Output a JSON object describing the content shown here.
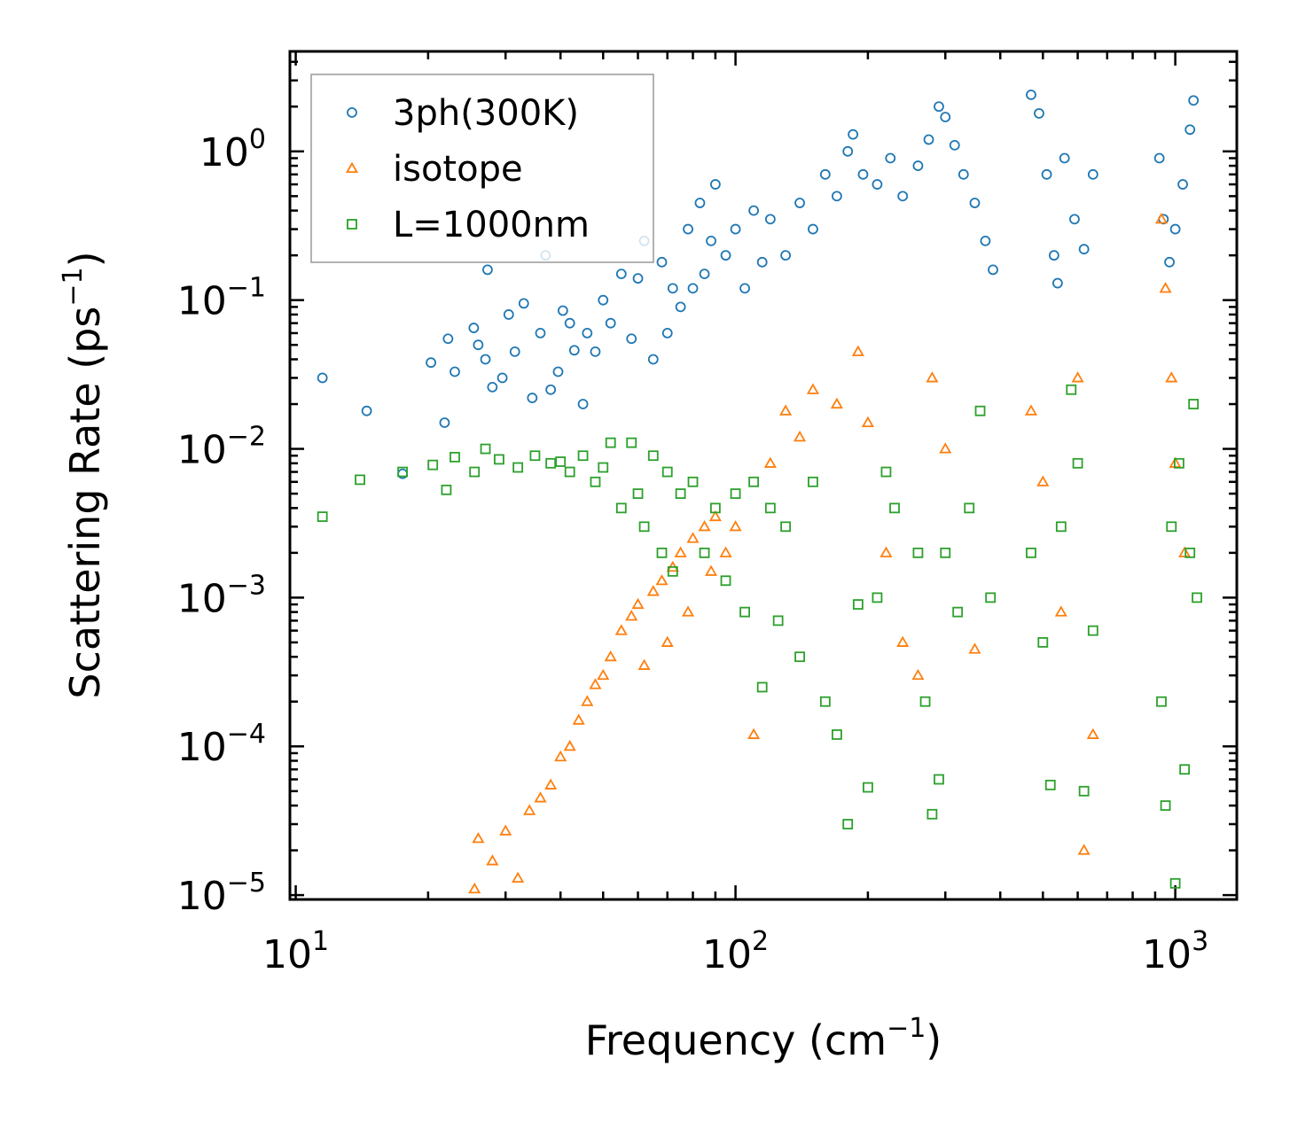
{
  "chart_data": {
    "type": "scatter",
    "scale": {
      "x": "log",
      "y": "log"
    },
    "xlabel": "Frequency (cm",
    "xlabel_sup": "−1",
    "xlabel_end": ")",
    "ylabel": "Scattering Rate (ps",
    "ylabel_sup": "−1",
    "ylabel_end": ")",
    "xlim": [
      9.7,
      1380
    ],
    "ylim": [
      9.35e-06,
      4.7
    ],
    "legend_position": "top-left",
    "x_ticks": [
      {
        "value": 10,
        "base": "10",
        "exp": "1"
      },
      {
        "value": 100,
        "base": "10",
        "exp": "2"
      },
      {
        "value": 1000,
        "base": "10",
        "exp": "3"
      }
    ],
    "y_ticks": [
      {
        "value": 1,
        "base": "10",
        "exp": "0"
      },
      {
        "value": 0.1,
        "base": "10",
        "exp": "−1"
      },
      {
        "value": 0.01,
        "base": "10",
        "exp": "−2"
      },
      {
        "value": 0.001,
        "base": "10",
        "exp": "−3"
      },
      {
        "value": 0.0001,
        "base": "10",
        "exp": "−4"
      },
      {
        "value": 1e-05,
        "base": "10",
        "exp": "−5"
      }
    ],
    "series": [
      {
        "name": "3ph(300K)",
        "marker": "circle",
        "color": "#1f77b4",
        "points": [
          [
            11.5,
            0.03
          ],
          [
            14.5,
            0.018
          ],
          [
            17.5,
            0.0068
          ],
          [
            20.3,
            0.038
          ],
          [
            21.8,
            0.015
          ],
          [
            22.2,
            0.055
          ],
          [
            23.0,
            0.033
          ],
          [
            25.4,
            0.065
          ],
          [
            26.0,
            0.05
          ],
          [
            27.0,
            0.04
          ],
          [
            27.3,
            0.16
          ],
          [
            28.0,
            0.026
          ],
          [
            29.5,
            0.03
          ],
          [
            30.5,
            0.08
          ],
          [
            31.5,
            0.045
          ],
          [
            33.0,
            0.095
          ],
          [
            34.5,
            0.022
          ],
          [
            36.0,
            0.06
          ],
          [
            37.0,
            0.2
          ],
          [
            38.0,
            0.025
          ],
          [
            39.5,
            0.033
          ],
          [
            40.5,
            0.085
          ],
          [
            42.0,
            0.07
          ],
          [
            43.0,
            0.046
          ],
          [
            45.0,
            0.02
          ],
          [
            46.0,
            0.06
          ],
          [
            48.0,
            0.045
          ],
          [
            50.0,
            0.1
          ],
          [
            52.0,
            0.07
          ],
          [
            55.0,
            0.15
          ],
          [
            58.0,
            0.055
          ],
          [
            60.0,
            0.14
          ],
          [
            62.0,
            0.25
          ],
          [
            65.0,
            0.04
          ],
          [
            68.0,
            0.18
          ],
          [
            70.0,
            0.06
          ],
          [
            72.0,
            0.12
          ],
          [
            75.0,
            0.09
          ],
          [
            78.0,
            0.3
          ],
          [
            80.0,
            0.12
          ],
          [
            83.0,
            0.45
          ],
          [
            85.0,
            0.15
          ],
          [
            88.0,
            0.25
          ],
          [
            90.0,
            0.6
          ],
          [
            95.0,
            0.2
          ],
          [
            100.0,
            0.3
          ],
          [
            105.0,
            0.12
          ],
          [
            110.0,
            0.4
          ],
          [
            115.0,
            0.18
          ],
          [
            120.0,
            0.35
          ],
          [
            130.0,
            0.2
          ],
          [
            140.0,
            0.45
          ],
          [
            150.0,
            0.3
          ],
          [
            160.0,
            0.7
          ],
          [
            170.0,
            0.5
          ],
          [
            180.0,
            1.0
          ],
          [
            185.0,
            1.3
          ],
          [
            195.0,
            0.7
          ],
          [
            210.0,
            0.6
          ],
          [
            225.0,
            0.9
          ],
          [
            240.0,
            0.5
          ],
          [
            260.0,
            0.8
          ],
          [
            275.0,
            1.2
          ],
          [
            290.0,
            2.0
          ],
          [
            300.0,
            1.7
          ],
          [
            315.0,
            1.1
          ],
          [
            330.0,
            0.7
          ],
          [
            350.0,
            0.45
          ],
          [
            370.0,
            0.25
          ],
          [
            385.0,
            0.16
          ],
          [
            470.0,
            2.4
          ],
          [
            490.0,
            1.8
          ],
          [
            510.0,
            0.7
          ],
          [
            530.0,
            0.2
          ],
          [
            540.0,
            0.13
          ],
          [
            560.0,
            0.9
          ],
          [
            590.0,
            0.35
          ],
          [
            620.0,
            0.22
          ],
          [
            650.0,
            0.7
          ],
          [
            920.0,
            0.9
          ],
          [
            940.0,
            0.35
          ],
          [
            970.0,
            0.18
          ],
          [
            1000.0,
            0.3
          ],
          [
            1040.0,
            0.6
          ],
          [
            1080.0,
            1.4
          ],
          [
            1100.0,
            2.2
          ]
        ]
      },
      {
        "name": "isotope",
        "marker": "triangle",
        "color": "#ff7f0e",
        "points": [
          [
            25.5,
            1.1e-05
          ],
          [
            26.0,
            2.4e-05
          ],
          [
            28.0,
            1.7e-05
          ],
          [
            30.0,
            2.7e-05
          ],
          [
            32.0,
            1.3e-05
          ],
          [
            34.0,
            3.7e-05
          ],
          [
            36.0,
            4.5e-05
          ],
          [
            38.0,
            5.5e-05
          ],
          [
            40.0,
            8.5e-05
          ],
          [
            42.0,
            0.0001
          ],
          [
            44.0,
            0.00015
          ],
          [
            46.0,
            0.0002
          ],
          [
            48.0,
            0.00026
          ],
          [
            50.0,
            0.0003
          ],
          [
            52.0,
            0.0004
          ],
          [
            55.0,
            0.0006
          ],
          [
            58.0,
            0.00075
          ],
          [
            60.0,
            0.0009
          ],
          [
            62.0,
            0.00035
          ],
          [
            65.0,
            0.0011
          ],
          [
            68.0,
            0.0013
          ],
          [
            70.0,
            0.0005
          ],
          [
            72.0,
            0.0016
          ],
          [
            75.0,
            0.002
          ],
          [
            78.0,
            0.0008
          ],
          [
            80.0,
            0.0025
          ],
          [
            85.0,
            0.003
          ],
          [
            88.0,
            0.0015
          ],
          [
            90.0,
            0.0035
          ],
          [
            95.0,
            0.002
          ],
          [
            100.0,
            0.003
          ],
          [
            110.0,
            0.00012
          ],
          [
            120.0,
            0.008
          ],
          [
            130.0,
            0.018
          ],
          [
            140.0,
            0.012
          ],
          [
            150.0,
            0.025
          ],
          [
            170.0,
            0.02
          ],
          [
            190.0,
            0.045
          ],
          [
            200.0,
            0.015
          ],
          [
            220.0,
            0.002
          ],
          [
            240.0,
            0.0005
          ],
          [
            260.0,
            0.0003
          ],
          [
            280.0,
            0.03
          ],
          [
            300.0,
            0.01
          ],
          [
            350.0,
            0.00045
          ],
          [
            470.0,
            0.018
          ],
          [
            500.0,
            0.006
          ],
          [
            550.0,
            0.0008
          ],
          [
            600.0,
            0.03
          ],
          [
            620.0,
            2e-05
          ],
          [
            650.0,
            0.00012
          ],
          [
            930.0,
            0.35
          ],
          [
            950.0,
            0.12
          ],
          [
            980.0,
            0.03
          ],
          [
            1000.0,
            0.008
          ],
          [
            1050.0,
            0.002
          ]
        ]
      },
      {
        "name": "L=1000nm",
        "marker": "square",
        "color": "#2ca02c",
        "points": [
          [
            11.5,
            0.0035
          ],
          [
            14.0,
            0.0062
          ],
          [
            17.5,
            0.007
          ],
          [
            20.5,
            0.0078
          ],
          [
            22.0,
            0.0053
          ],
          [
            23.0,
            0.0088
          ],
          [
            25.5,
            0.007
          ],
          [
            27.0,
            0.01
          ],
          [
            29.0,
            0.0085
          ],
          [
            32.0,
            0.0075
          ],
          [
            35.0,
            0.009
          ],
          [
            38.0,
            0.008
          ],
          [
            40.0,
            0.0082
          ],
          [
            42.0,
            0.007
          ],
          [
            45.0,
            0.009
          ],
          [
            48.0,
            0.006
          ],
          [
            50.0,
            0.0075
          ],
          [
            52.0,
            0.011
          ],
          [
            55.0,
            0.004
          ],
          [
            58.0,
            0.011
          ],
          [
            60.0,
            0.005
          ],
          [
            62.0,
            0.003
          ],
          [
            65.0,
            0.009
          ],
          [
            68.0,
            0.002
          ],
          [
            70.0,
            0.007
          ],
          [
            72.0,
            0.0015
          ],
          [
            75.0,
            0.005
          ],
          [
            80.0,
            0.006
          ],
          [
            85.0,
            0.002
          ],
          [
            90.0,
            0.004
          ],
          [
            95.0,
            0.0013
          ],
          [
            100.0,
            0.005
          ],
          [
            105.0,
            0.0008
          ],
          [
            110.0,
            0.006
          ],
          [
            115.0,
            0.00025
          ],
          [
            120.0,
            0.004
          ],
          [
            125.0,
            0.0007
          ],
          [
            130.0,
            0.003
          ],
          [
            140.0,
            0.0004
          ],
          [
            150.0,
            0.006
          ],
          [
            160.0,
            0.0002
          ],
          [
            170.0,
            0.00012
          ],
          [
            180.0,
            3e-05
          ],
          [
            190.0,
            0.0009
          ],
          [
            200.0,
            5.3e-05
          ],
          [
            210.0,
            0.001
          ],
          [
            220.0,
            0.007
          ],
          [
            230.0,
            0.004
          ],
          [
            260.0,
            0.002
          ],
          [
            270.0,
            0.0002
          ],
          [
            280.0,
            3.5e-05
          ],
          [
            290.0,
            6e-05
          ],
          [
            300.0,
            0.002
          ],
          [
            320.0,
            0.0008
          ],
          [
            340.0,
            0.004
          ],
          [
            360.0,
            0.018
          ],
          [
            380.0,
            0.001
          ],
          [
            470.0,
            0.002
          ],
          [
            500.0,
            0.0005
          ],
          [
            520.0,
            5.5e-05
          ],
          [
            550.0,
            0.003
          ],
          [
            580.0,
            0.025
          ],
          [
            600.0,
            0.008
          ],
          [
            620.0,
            5e-05
          ],
          [
            650.0,
            0.0006
          ],
          [
            930.0,
            0.0002
          ],
          [
            950.0,
            4e-05
          ],
          [
            980.0,
            0.003
          ],
          [
            1000.0,
            1.2e-05
          ],
          [
            1020.0,
            0.008
          ],
          [
            1050.0,
            7e-05
          ],
          [
            1080.0,
            0.002
          ],
          [
            1100.0,
            0.02
          ],
          [
            1120.0,
            0.001
          ]
        ]
      }
    ]
  }
}
